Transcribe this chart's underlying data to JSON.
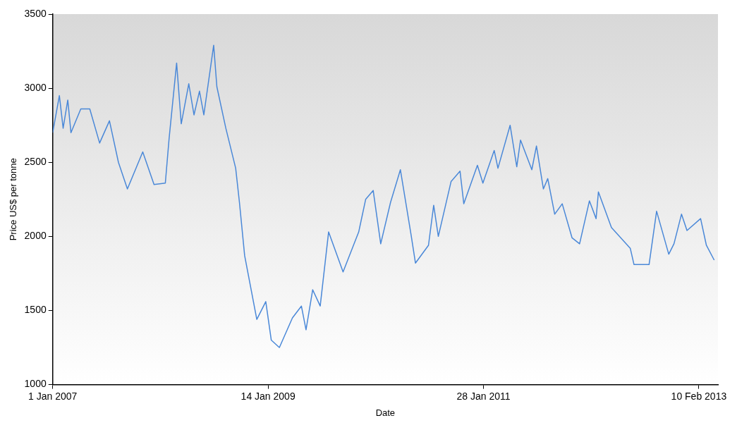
{
  "chart_data": {
    "type": "line",
    "xlabel": "Date",
    "ylabel": "Price US$ per tonne",
    "x": [
      "2007-01-01",
      "2007-01-24",
      "2007-02-06",
      "2007-02-22",
      "2007-03-05",
      "2007-04-08",
      "2007-05-09",
      "2007-06-12",
      "2007-07-16",
      "2007-08-16",
      "2007-09-16",
      "2007-11-08",
      "2007-12-17",
      "2008-01-25",
      "2008-02-07",
      "2008-03-04",
      "2008-03-20",
      "2008-04-15",
      "2008-05-03",
      "2008-05-22",
      "2008-06-06",
      "2008-07-10",
      "2008-07-21",
      "2008-08-21",
      "2008-09-24",
      "2008-10-07",
      "2008-10-25",
      "2008-12-06",
      "2009-01-06",
      "2009-01-25",
      "2009-02-22",
      "2009-04-08",
      "2009-05-09",
      "2009-05-25",
      "2009-06-17",
      "2009-07-13",
      "2009-08-11",
      "2009-09-30",
      "2009-11-23",
      "2009-12-17",
      "2010-01-12",
      "2010-02-07",
      "2010-03-13",
      "2010-04-16",
      "2010-05-23",
      "2010-06-07",
      "2010-07-22",
      "2010-08-09",
      "2010-08-25",
      "2010-10-08",
      "2010-11-08",
      "2010-11-21",
      "2011-01-07",
      "2011-01-26",
      "2011-03-06",
      "2011-03-19",
      "2011-04-30",
      "2011-05-23",
      "2011-06-05",
      "2011-07-14",
      "2011-07-30",
      "2011-08-23",
      "2011-09-07",
      "2011-10-01",
      "2011-10-27",
      "2011-11-30",
      "2011-12-26",
      "2012-01-29",
      "2012-02-21",
      "2012-02-29",
      "2012-04-14",
      "2012-06-18",
      "2012-07-01",
      "2012-08-22",
      "2012-09-17",
      "2012-10-29",
      "2012-11-16",
      "2012-12-12",
      "2012-12-31",
      "2013-02-16",
      "2013-03-08",
      "2013-04-04"
    ],
    "series": [
      {
        "color": "#4a88d8",
        "values": [
          2700,
          2950,
          2730,
          2920,
          2700,
          2860,
          2860,
          2630,
          2780,
          2500,
          2320,
          2570,
          2350,
          2360,
          2660,
          3170,
          2760,
          3030,
          2820,
          2980,
          2820,
          3290,
          3010,
          2730,
          2460,
          2230,
          1870,
          1440,
          1560,
          1300,
          1250,
          1450,
          1530,
          1370,
          1640,
          1530,
          2030,
          1760,
          2030,
          2250,
          2310,
          1950,
          2230,
          2450,
          2010,
          1820,
          1940,
          2210,
          2000,
          2370,
          2440,
          2220,
          2480,
          2360,
          2580,
          2460,
          2750,
          2470,
          2650,
          2450,
          2610,
          2320,
          2390,
          2150,
          2220,
          1990,
          1950,
          2240,
          2120,
          2300,
          2060,
          1920,
          1810,
          1810,
          2170,
          1880,
          1950,
          2150,
          2040,
          2120,
          1940,
          1840
        ]
      }
    ],
    "xlim": [
      "2007-01-01",
      "2013-04-17"
    ],
    "xticks": [
      {
        "value": "2007-01-01",
        "label": "1 Jan 2007"
      },
      {
        "value": "2009-01-14",
        "label": "14 Jan 2009"
      },
      {
        "value": "2011-01-28",
        "label": "28 Jan 2011"
      },
      {
        "value": "2013-02-10",
        "label": "10 Feb 2013"
      }
    ],
    "ylim": [
      1000,
      3500
    ],
    "yticks": [
      1000,
      1500,
      2000,
      2500,
      3000,
      3500
    ],
    "grid": false,
    "legend": false,
    "marker": "none",
    "line_style": "solid"
  }
}
